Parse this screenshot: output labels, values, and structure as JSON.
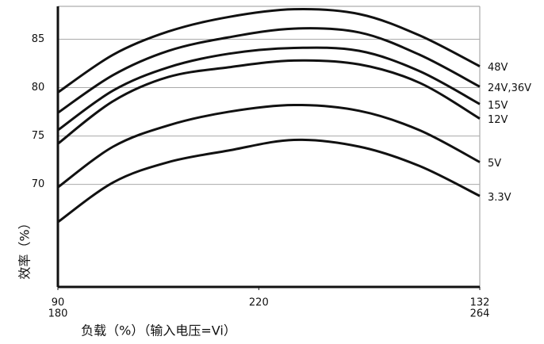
{
  "chart_data": {
    "type": "line",
    "x_axis_label": "负载（%）（输入电压=Vi）",
    "y_axis_label": "效率（%）",
    "x": [
      180,
      191,
      202,
      214,
      227,
      240,
      252,
      264
    ],
    "xlim": [
      180,
      264
    ],
    "xticks": [
      180,
      220,
      264
    ],
    "x_secondary_ticks": [
      {
        "value": 180,
        "label": "90"
      },
      {
        "value": 264,
        "label": "132"
      }
    ],
    "ylim": [
      59.4,
      88.4
    ],
    "yticks": [
      85,
      80,
      75,
      70
    ],
    "grid": true,
    "series": [
      {
        "name": "48V",
        "color": "#111111",
        "values": [
          79.5,
          83.4,
          85.8,
          87.3,
          88.1,
          87.6,
          85.4,
          82.2
        ]
      },
      {
        "name": "24V,36V",
        "color": "#111111",
        "values": [
          77.4,
          81.3,
          83.8,
          85.2,
          86.1,
          85.7,
          83.4,
          80.1
        ]
      },
      {
        "name": "15V",
        "color": "#111111",
        "values": [
          75.6,
          79.7,
          82.1,
          83.5,
          84.1,
          83.8,
          81.7,
          78.3
        ]
      },
      {
        "name": "12V",
        "color": "#111111",
        "values": [
          74.2,
          78.6,
          81.1,
          82.1,
          82.8,
          82.4,
          80.5,
          76.8
        ]
      },
      {
        "name": "5V",
        "color": "#111111",
        "values": [
          69.7,
          73.9,
          76.1,
          77.5,
          78.2,
          77.6,
          75.6,
          72.3
        ]
      },
      {
        "name": "3.3V",
        "color": "#111111",
        "values": [
          66.1,
          70.2,
          72.3,
          73.5,
          74.6,
          73.9,
          71.9,
          68.8
        ]
      }
    ]
  }
}
